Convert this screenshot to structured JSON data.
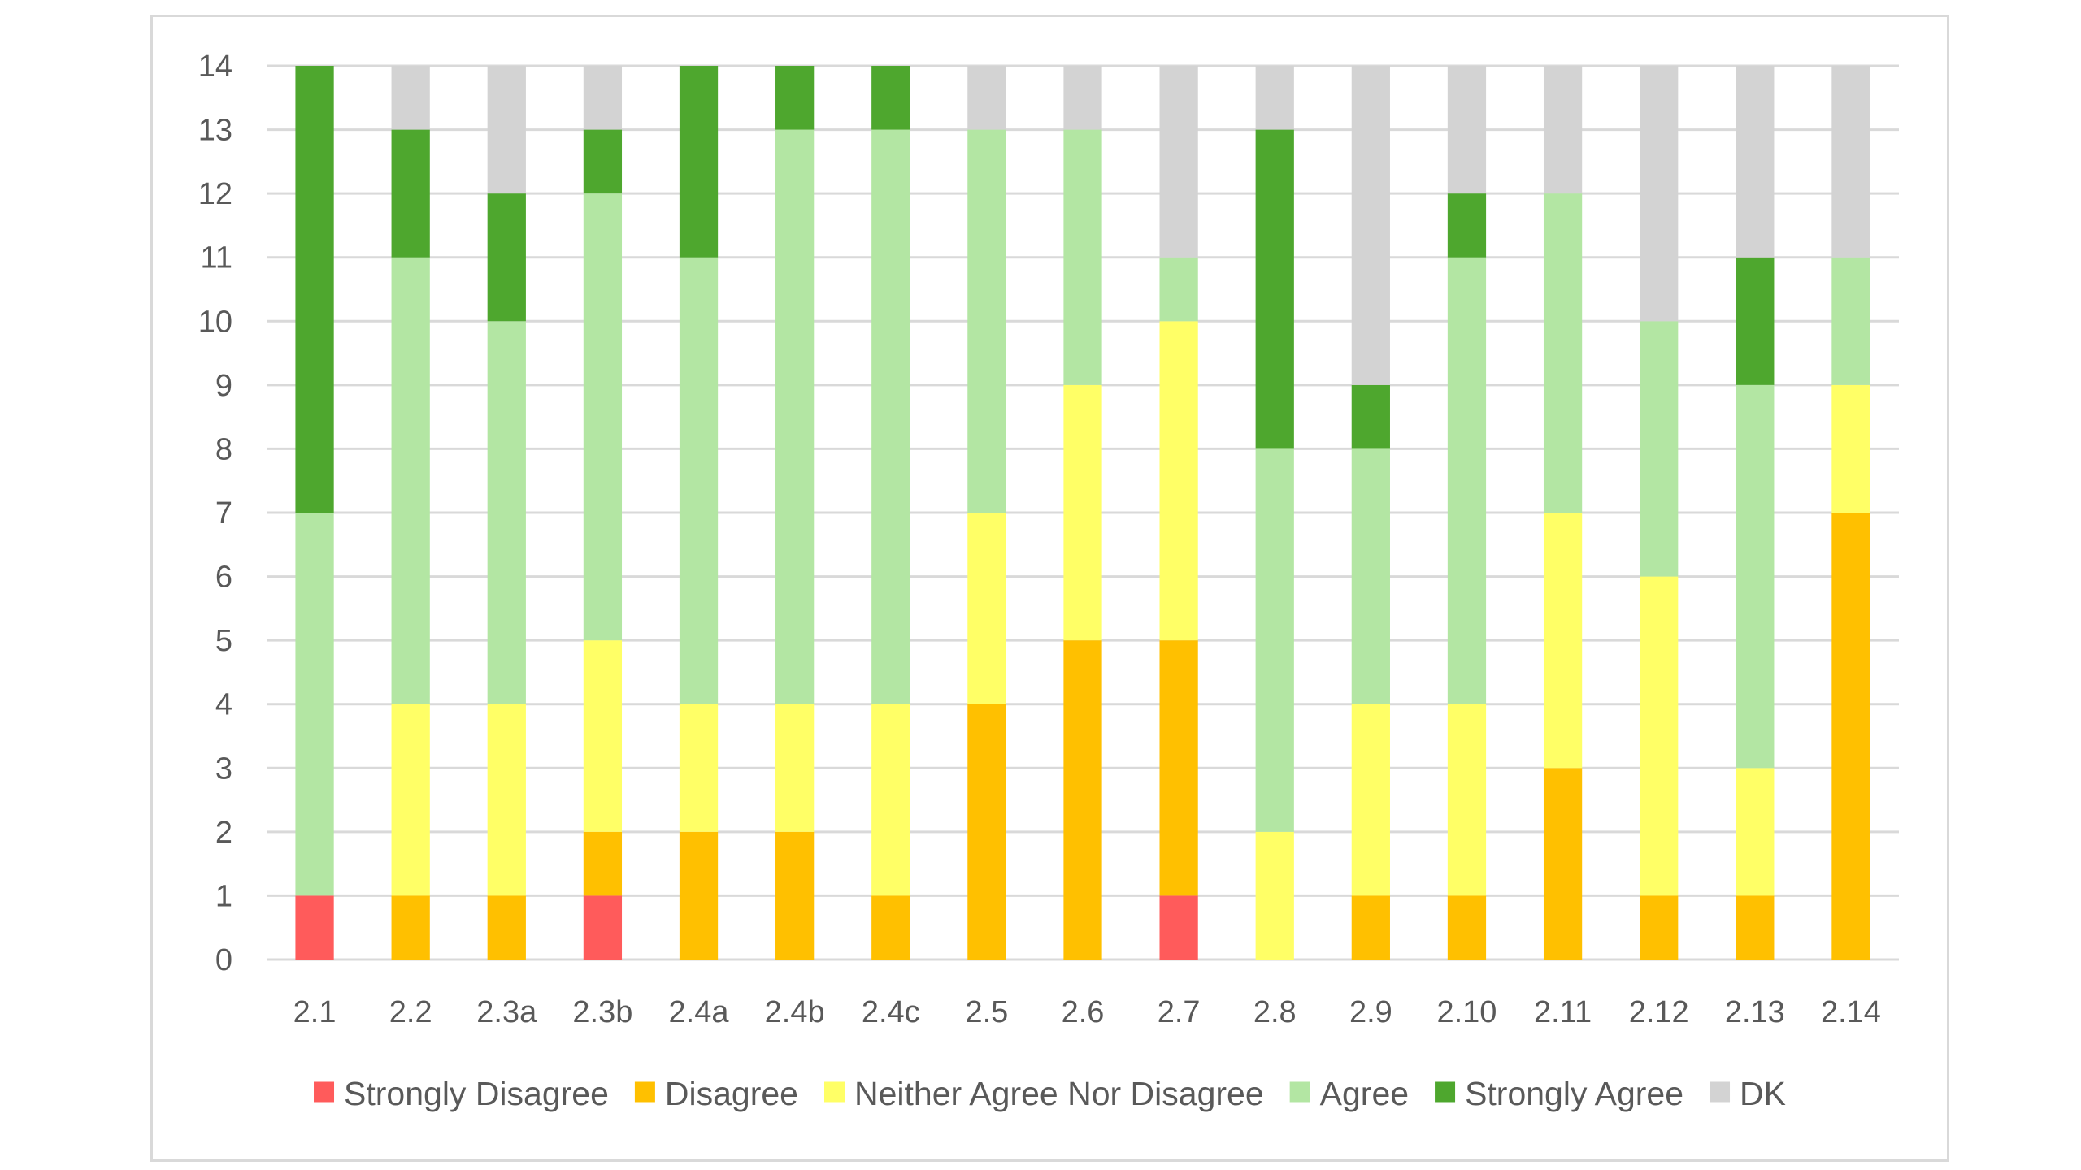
{
  "chart_data": {
    "type": "bar",
    "stacked": true,
    "categories": [
      "2.1",
      "2.2",
      "2.3a",
      "2.3b",
      "2.4a",
      "2.4b",
      "2.4c",
      "2.5",
      "2.6",
      "2.7",
      "2.8",
      "2.9",
      "2.10",
      "2.11",
      "2.12",
      "2.13",
      "2.14"
    ],
    "series": [
      {
        "name": "Strongly Disagree",
        "color": "#ff5b5b",
        "values": [
          1,
          0,
          0,
          1,
          0,
          0,
          0,
          0,
          0,
          1,
          0,
          0,
          0,
          0,
          0,
          0,
          0
        ]
      },
      {
        "name": "Disagree",
        "color": "#ffc000",
        "values": [
          0,
          1,
          1,
          1,
          2,
          2,
          1,
          4,
          5,
          4,
          0,
          1,
          1,
          3,
          1,
          1,
          7
        ]
      },
      {
        "name": "Neither Agree Nor Disagree",
        "color": "#ffff66",
        "values": [
          0,
          3,
          3,
          3,
          2,
          2,
          3,
          3,
          4,
          5,
          2,
          3,
          3,
          4,
          5,
          2,
          2
        ]
      },
      {
        "name": "Agree",
        "color": "#b3e6a3",
        "values": [
          6,
          7,
          6,
          7,
          7,
          9,
          9,
          6,
          4,
          1,
          6,
          4,
          7,
          5,
          4,
          6,
          2
        ]
      },
      {
        "name": "Strongly Agree",
        "color": "#4ea72e",
        "values": [
          7,
          2,
          2,
          1,
          3,
          1,
          1,
          0,
          0,
          0,
          5,
          1,
          1,
          0,
          0,
          2,
          0
        ]
      },
      {
        "name": "DK",
        "color": "#d3d3d3",
        "values": [
          0,
          1,
          2,
          1,
          0,
          0,
          0,
          1,
          1,
          3,
          1,
          5,
          2,
          2,
          4,
          3,
          3
        ]
      }
    ],
    "ylim": [
      0,
      14
    ],
    "yticks": [
      "0",
      "1",
      "2",
      "3",
      "4",
      "5",
      "6",
      "7",
      "8",
      "9",
      "10",
      "11",
      "12",
      "13",
      "14"
    ],
    "grid": true,
    "legend_position": "bottom",
    "title": "",
    "xlabel": "",
    "ylabel": ""
  }
}
